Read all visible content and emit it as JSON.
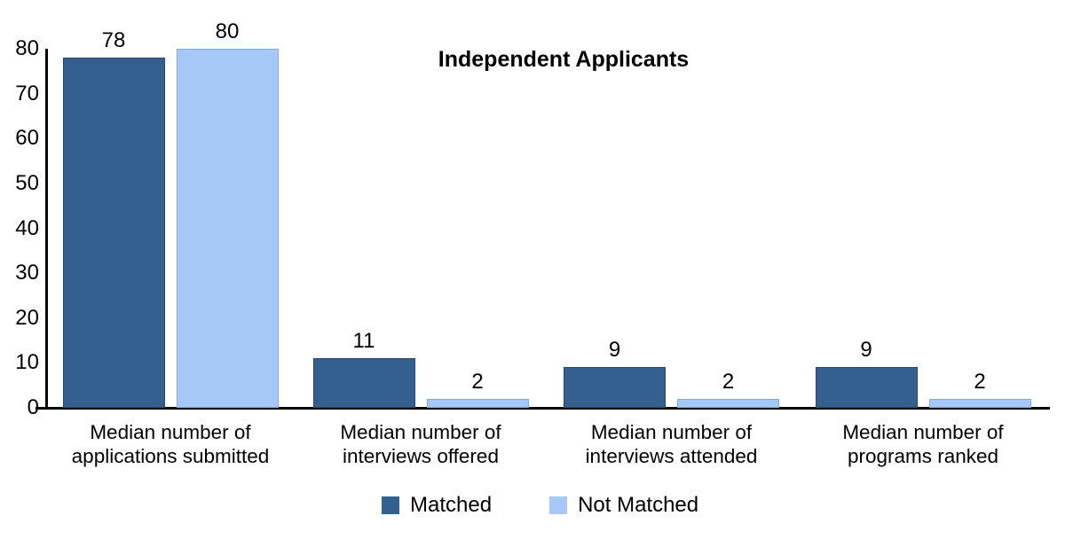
{
  "title": "Independent Applicants",
  "colors": {
    "matched": "#33608F",
    "matched_border": "#24476B",
    "not_matched": "#A6C8F8",
    "not_matched_border": "#85A9DA",
    "axis": "#000000"
  },
  "chart_data": {
    "type": "bar",
    "title": "Independent Applicants",
    "categories": [
      "Median number of\napplications submitted",
      "Median number of\ninterviews offered",
      "Median number of\ninterviews attended",
      "Median number of\nprograms ranked"
    ],
    "series": [
      {
        "name": "Matched",
        "color": "#33608F",
        "border": "#24476B",
        "values": [
          78,
          11,
          9,
          9
        ]
      },
      {
        "name": "Not Matched",
        "color": "#A6C8F8",
        "border": "#85A9DA",
        "values": [
          80,
          2,
          2,
          2
        ]
      }
    ],
    "xlabel": "",
    "ylabel": "",
    "ylim": [
      0,
      80
    ],
    "yticks": [
      0,
      10,
      20,
      30,
      40,
      50,
      60,
      70,
      80
    ],
    "grid": false,
    "value_labels": true,
    "legend_position": "bottom"
  }
}
